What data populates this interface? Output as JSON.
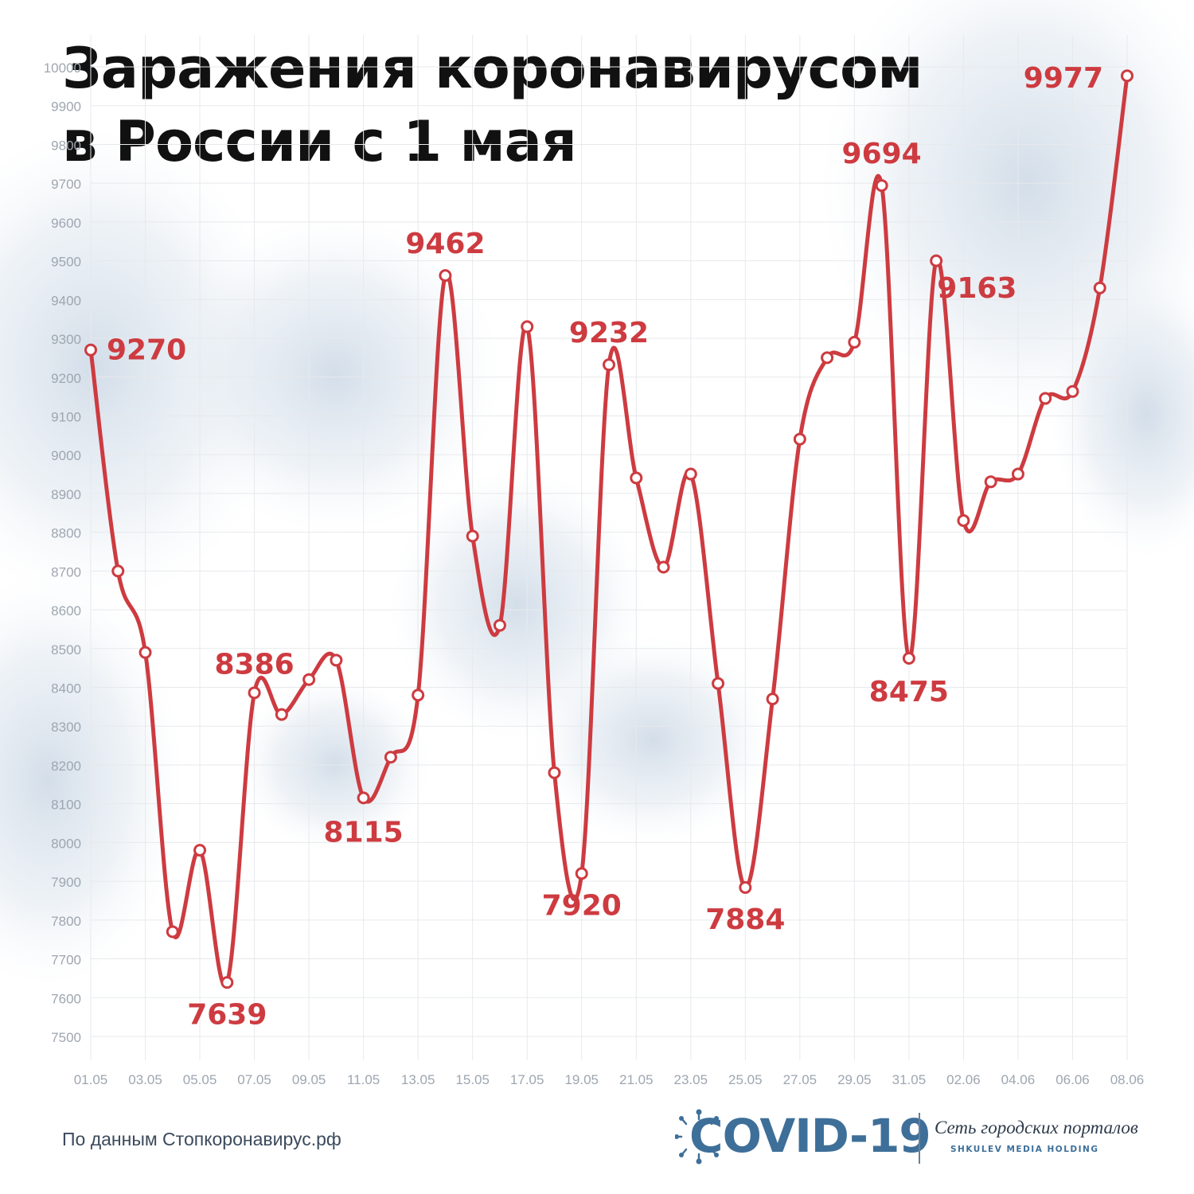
{
  "title_line1": "Заражения коронавирусом",
  "title_line2": "в России с 1 мая",
  "source": "По данным Стопкоронавирус.рф",
  "logo": {
    "text": "COVID-19",
    "network": "Сеть городских порталов",
    "holding": "SHKULEV MEDIA HOLDING",
    "icon": "virus-icon"
  },
  "colors": {
    "line": "#cd3b40",
    "label": "#cd3b40",
    "grid": "#e7e9ec",
    "tick": "#9ea6b0",
    "brand": "#3e6f99"
  },
  "chart_data": {
    "type": "line",
    "title": "Заражения коронавирусом в России с 1 мая",
    "xlabel": "",
    "ylabel": "",
    "ylim": [
      7500,
      10000
    ],
    "yticks": [
      7500,
      7600,
      7700,
      7800,
      7900,
      8000,
      8100,
      8200,
      8300,
      8400,
      8500,
      8600,
      8700,
      8800,
      8900,
      9000,
      9100,
      9200,
      9300,
      9400,
      9500,
      9600,
      9700,
      9800,
      9900,
      10000
    ],
    "grid": true,
    "categories": [
      "01.05",
      "02.05",
      "03.05",
      "04.05",
      "05.05",
      "06.05",
      "07.05",
      "08.05",
      "09.05",
      "10.05",
      "11.05",
      "12.05",
      "13.05",
      "14.05",
      "15.05",
      "16.05",
      "17.05",
      "18.05",
      "19.05",
      "20.05",
      "21.05",
      "22.05",
      "23.05",
      "24.05",
      "25.05",
      "26.05",
      "27.05",
      "28.05",
      "29.05",
      "30.05",
      "31.05",
      "01.06",
      "02.06",
      "03.06",
      "04.06",
      "05.06",
      "06.06",
      "07.06",
      "08.06"
    ],
    "xtick_labels": [
      "01.05",
      "03.05",
      "05.05",
      "07.05",
      "09.05",
      "11.05",
      "13.05",
      "15.05",
      "17.05",
      "19.05",
      "21.05",
      "23.05",
      "25.05",
      "27.05",
      "29.05",
      "31.05",
      "02.06",
      "04.06",
      "06.06",
      "08.06"
    ],
    "values": [
      9270,
      8700,
      8490,
      7770,
      7980,
      7639,
      8386,
      8330,
      8420,
      8470,
      8115,
      8220,
      8380,
      9462,
      8790,
      8560,
      9330,
      8180,
      7920,
      9232,
      8940,
      8710,
      8950,
      8410,
      7884,
      8370,
      9040,
      9250,
      9290,
      9694,
      8475,
      9500,
      8830,
      8930,
      8950,
      9145,
      9163,
      9430,
      9977
    ],
    "data_labels": [
      {
        "label": "9270",
        "index": 0
      },
      {
        "label": "7639",
        "index": 5
      },
      {
        "label": "8386",
        "index": 6
      },
      {
        "label": "8115",
        "index": 10
      },
      {
        "label": "9462",
        "index": 13
      },
      {
        "label": "7920",
        "index": 18
      },
      {
        "label": "9232",
        "index": 19
      },
      {
        "label": "7884",
        "index": 24
      },
      {
        "label": "9694",
        "index": 29
      },
      {
        "label": "8475",
        "index": 30
      },
      {
        "label": "9163",
        "index": 36
      },
      {
        "label": "9977",
        "index": 38
      }
    ]
  }
}
